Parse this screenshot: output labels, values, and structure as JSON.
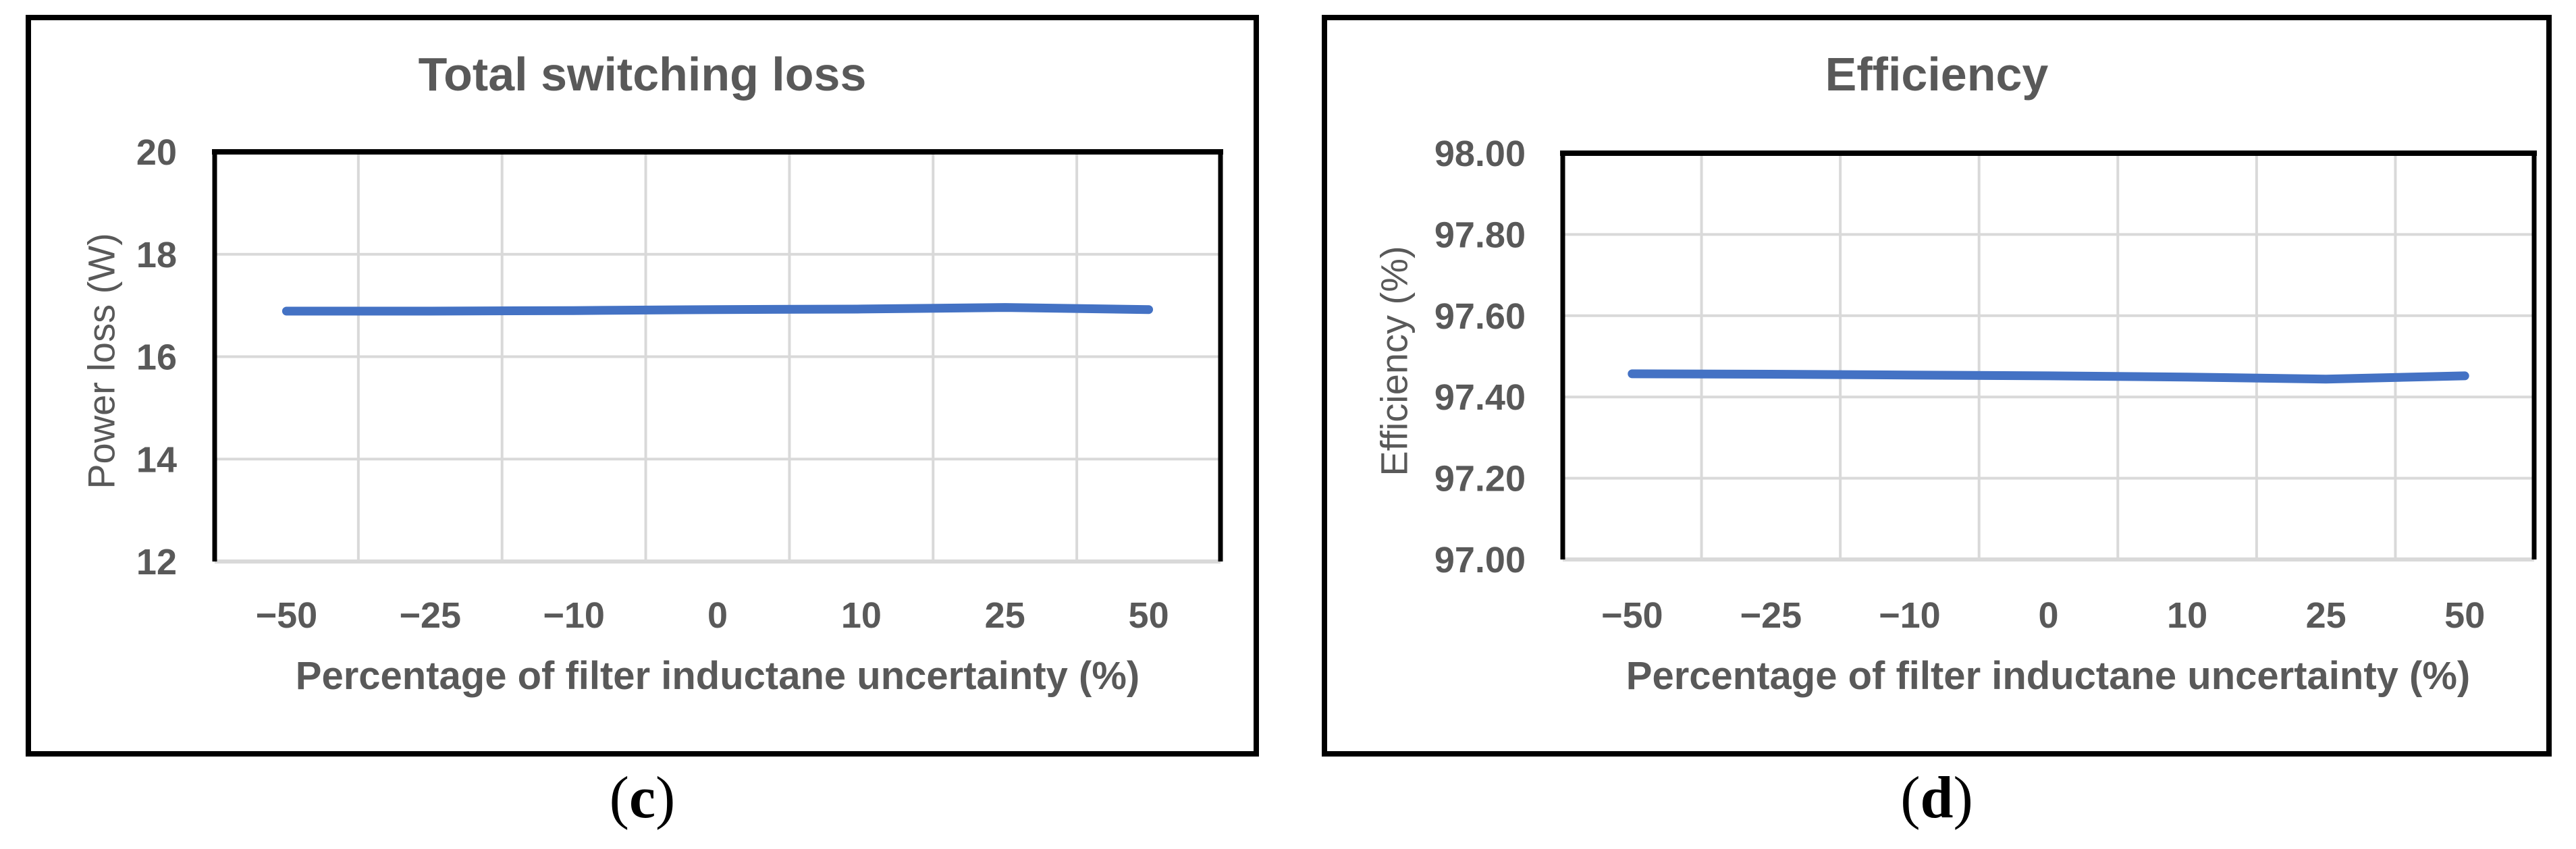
{
  "colors": {
    "line": "#4472C4",
    "grid": "#D9D9D9",
    "text": "#595959",
    "border": "#000000",
    "background": "#FFFFFF"
  },
  "captions": [
    {
      "open": "(",
      "letter": "c",
      "close": ")"
    },
    {
      "open": "(",
      "letter": "d",
      "close": ")"
    }
  ],
  "chart_data": [
    {
      "type": "line",
      "title": "Total switching loss",
      "xlabel": "Percentage of filter inductane uncertainty (%)",
      "ylabel": "Power loss (W)",
      "categories": [
        "−50",
        "−25",
        "−10",
        "0",
        "10",
        "25",
        "50"
      ],
      "values": [
        16.89,
        16.89,
        16.9,
        16.92,
        16.93,
        16.96,
        16.92
      ],
      "y_ticks": [
        "20",
        "18",
        "16",
        "14",
        "12"
      ],
      "ylim": [
        12,
        20
      ],
      "x_axis_type": "category",
      "grid": true,
      "legend": "none"
    },
    {
      "type": "line",
      "title": "Efficiency",
      "xlabel": "Percentage of filter inductane uncertainty (%)",
      "ylabel": "Efficiency (%)",
      "categories": [
        "−50",
        "−25",
        "−10",
        "0",
        "10",
        "25",
        "50"
      ],
      "values": [
        97.457,
        97.456,
        97.454,
        97.452,
        97.449,
        97.444,
        97.452
      ],
      "y_ticks": [
        "98.00",
        "97.80",
        "97.60",
        "97.40",
        "97.20",
        "97.00"
      ],
      "ylim": [
        97.0,
        98.0
      ],
      "x_axis_type": "category",
      "grid": true,
      "legend": "none"
    }
  ]
}
